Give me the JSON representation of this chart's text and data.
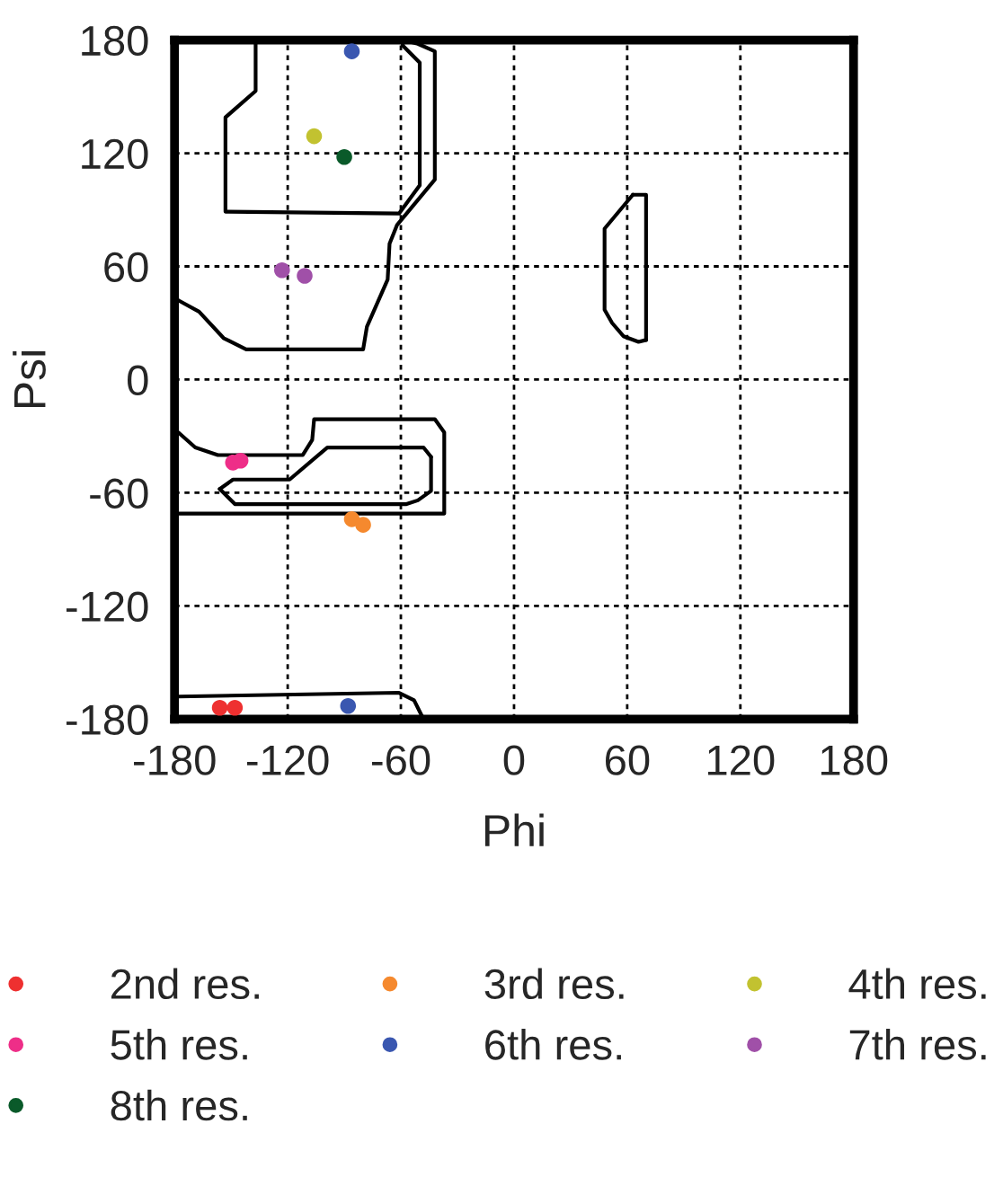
{
  "chart_data": {
    "type": "scatter",
    "xlabel": "Phi",
    "ylabel": "Psi",
    "xlim": [
      -180,
      180
    ],
    "ylim": [
      -180,
      180
    ],
    "xticks": [
      -180,
      -120,
      -60,
      0,
      60,
      120,
      180
    ],
    "yticks": [
      -180,
      -120,
      -60,
      0,
      60,
      120,
      180
    ],
    "grid": true,
    "legend": "bottom",
    "marker": "circle",
    "series": [
      {
        "name": "2nd res.",
        "color": "#ee3030",
        "x": [
          -156,
          -148
        ],
        "values": [
          -174,
          -174
        ]
      },
      {
        "name": "3rd res.",
        "color": "#f5892e",
        "x": [
          -86,
          -80
        ],
        "values": [
          -74,
          -77
        ]
      },
      {
        "name": "4th res.",
        "color": "#c2c230",
        "x": [
          -106
        ],
        "values": [
          129
        ]
      },
      {
        "name": "5th res.",
        "color": "#ee2e88",
        "x": [
          -149,
          -145
        ],
        "values": [
          -44,
          -43
        ]
      },
      {
        "name": "6th res.",
        "color": "#3a57b0",
        "x": [
          -86,
          -88
        ],
        "values": [
          174,
          -173
        ]
      },
      {
        "name": "7th res.",
        "color": "#a050a8",
        "x": [
          -123,
          -111
        ],
        "values": [
          58,
          55
        ]
      },
      {
        "name": "8th res.",
        "color": "#0a5a2a",
        "x": [
          -90
        ],
        "values": [
          118
        ]
      },
      {
        "type": "line",
        "marker": "none",
        "color": "#000000",
        "x": [
          -137,
          -137,
          -153,
          -153,
          -61,
          -50,
          -50,
          -59,
          -59
        ],
        "values": [
          180,
          153,
          139,
          89,
          88,
          103,
          168,
          177,
          180
        ]
      },
      {
        "type": "line",
        "marker": "none",
        "color": "#000000",
        "x": [
          -180,
          -178,
          -167,
          -154,
          -142,
          -80,
          -78,
          -67,
          -66,
          -62,
          -42,
          -42,
          -51,
          -59
        ],
        "values": [
          44,
          42,
          36,
          22,
          16,
          16,
          28,
          53,
          72,
          82,
          106,
          174,
          178,
          180
        ]
      },
      {
        "type": "line",
        "marker": "none",
        "color": "#000000",
        "x": [
          -180,
          -178,
          -61,
          -53,
          -49,
          -48
        ],
        "values": [
          -168,
          -168,
          -166,
          -170,
          -178,
          -180
        ]
      },
      {
        "type": "line",
        "marker": "none",
        "color": "#000000",
        "x": [
          -180,
          -178,
          -169,
          -157,
          -112,
          -107,
          -106,
          -42,
          -37,
          -37,
          -178,
          -180
        ],
        "values": [
          -27,
          -28,
          -36,
          -40,
          -40,
          -32,
          -21,
          -21,
          -28,
          -71,
          -71,
          -71
        ]
      },
      {
        "type": "line",
        "marker": "none",
        "color": "#000000",
        "x": [
          -156,
          -149,
          -119,
          -99,
          -48,
          -44
        ],
        "values": [
          -58,
          -53,
          -53,
          -36,
          -36,
          -41
        ]
      },
      {
        "type": "line",
        "marker": "none",
        "color": "#000000",
        "x": [
          -44,
          -44,
          -51,
          -57,
          -148,
          -156
        ],
        "values": [
          -41,
          -59,
          -64,
          -66,
          -66,
          -58
        ]
      },
      {
        "type": "line",
        "marker": "none",
        "color": "#000000",
        "x": [
          63,
          70,
          70
        ],
        "values": [
          98,
          98,
          21
        ]
      },
      {
        "type": "line",
        "marker": "none",
        "color": "#000000",
        "x": [
          70,
          66,
          58,
          52,
          48,
          48,
          63
        ],
        "values": [
          21,
          20,
          23,
          30,
          37,
          80,
          98
        ]
      }
    ]
  }
}
